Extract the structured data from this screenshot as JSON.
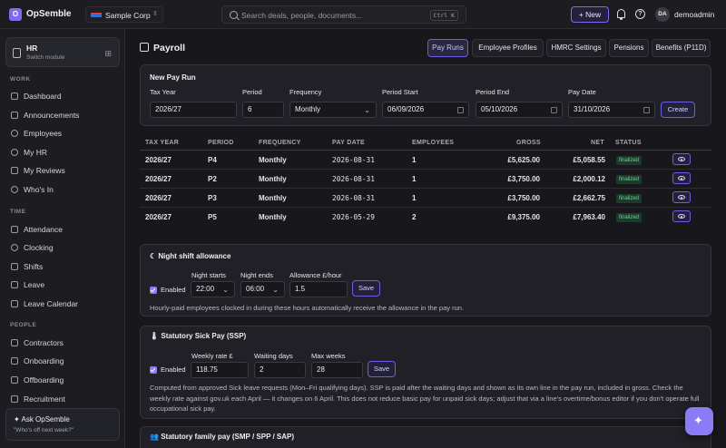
{
  "app": {
    "logo_letter": "O",
    "title": "OpSemble"
  },
  "org": {
    "name": "Sample Corp"
  },
  "search": {
    "placeholder": "Search deals, people, documents...",
    "shortcut": "Ctrl K"
  },
  "header": {
    "new_label": "+ New",
    "user_initials": "DA",
    "username": "demoadmin"
  },
  "module": {
    "name": "HR",
    "sub": "Switch module"
  },
  "sidebar": {
    "sections": [
      {
        "label": "WORK",
        "items": [
          "Dashboard",
          "Announcements",
          "Employees",
          "My HR",
          "My Reviews",
          "Who's In"
        ]
      },
      {
        "label": "TIME",
        "items": [
          "Attendance",
          "Clocking",
          "Shifts",
          "Leave",
          "Leave Calendar"
        ]
      },
      {
        "label": "PEOPLE",
        "items": [
          "Contractors",
          "Onboarding",
          "Offboarding",
          "Recruitment"
        ]
      }
    ],
    "ask": {
      "title": "Ask OpSemble",
      "sub": "\"Who's off next week?\""
    }
  },
  "page": {
    "title": "Payroll",
    "tabs": [
      "Pay Runs",
      "Employee Profiles",
      "HMRC Settings",
      "Pensions",
      "Benefits (P11D)"
    ],
    "active_tab": "Pay Runs"
  },
  "new_run": {
    "title": "New Pay Run",
    "labels": {
      "tax_year": "Tax Year",
      "period": "Period",
      "frequency": "Frequency",
      "period_start": "Period Start",
      "period_end": "Period End",
      "pay_date": "Pay Date"
    },
    "values": {
      "tax_year": "2026/27",
      "period": "6",
      "frequency": "Monthly",
      "period_start": "06/09/2026",
      "period_end": "05/10/2026",
      "pay_date": "31/10/2026"
    },
    "create_label": "Create"
  },
  "table": {
    "headers": [
      "TAX YEAR",
      "PERIOD",
      "FREQUENCY",
      "PAY DATE",
      "EMPLOYEES",
      "GROSS",
      "NET",
      "STATUS"
    ],
    "rows": [
      {
        "tax_year": "2026/27",
        "period": "P4",
        "frequency": "Monthly",
        "pay_date": "2026-08-31",
        "employees": "1",
        "gross": "£5,625.00",
        "net": "£5,058.55",
        "status": "finalized"
      },
      {
        "tax_year": "2026/27",
        "period": "P2",
        "frequency": "Monthly",
        "pay_date": "2026-08-31",
        "employees": "1",
        "gross": "£3,750.00",
        "net": "£2,000.12",
        "status": "finalized"
      },
      {
        "tax_year": "2026/27",
        "period": "P3",
        "frequency": "Monthly",
        "pay_date": "2026-08-31",
        "employees": "1",
        "gross": "£3,750.00",
        "net": "£2,662.75",
        "status": "finalized"
      },
      {
        "tax_year": "2026/27",
        "period": "P5",
        "frequency": "Monthly",
        "pay_date": "2026-05-29",
        "employees": "2",
        "gross": "£9,375.00",
        "net": "£7,963.40",
        "status": "finalized"
      }
    ]
  },
  "night_shift": {
    "title": "Night shift allowance",
    "enabled_label": "Enabled",
    "labels": {
      "starts": "Night starts",
      "ends": "Night ends",
      "allowance": "Allowance £/hour"
    },
    "values": {
      "starts": "22:00",
      "ends": "06:00",
      "allowance": "1.5"
    },
    "save_label": "Save",
    "help": "Hourly-paid employees clocked in during these hours automatically receive the allowance in the pay run."
  },
  "ssp": {
    "title": "Statutory Sick Pay (SSP)",
    "enabled_label": "Enabled",
    "labels": {
      "weekly_rate": "Weekly rate £",
      "waiting_days": "Waiting days",
      "max_weeks": "Max weeks"
    },
    "values": {
      "weekly_rate": "118.75",
      "waiting_days": "2",
      "max_weeks": "28"
    },
    "save_label": "Save",
    "help": "Computed from approved Sick leave requests (Mon–Fri qualifying days). SSP is paid after the waiting days and shown as its own line in the pay run, included in gross. Check the weekly rate against gov.uk each April — it changes on 6 April. This does not reduce basic pay for unpaid sick days; adjust that via a line's overtime/bonus editor if you don't operate full occupational sick pay."
  },
  "family_pay": {
    "title": "Statutory family pay (SMP / SPP / SAP)"
  },
  "colors": {
    "accent": "#8b7cf6",
    "background": "#17171c",
    "panel": "#202026",
    "badge_bg": "#1d3b2b",
    "badge_text": "#6fd49a"
  },
  "icons": [
    "logo-icon",
    "flag-icon",
    "search-icon",
    "bell-icon",
    "help-icon",
    "eye-icon",
    "sparkle-icon",
    "calendar-icon",
    "chevron-down-icon"
  ]
}
